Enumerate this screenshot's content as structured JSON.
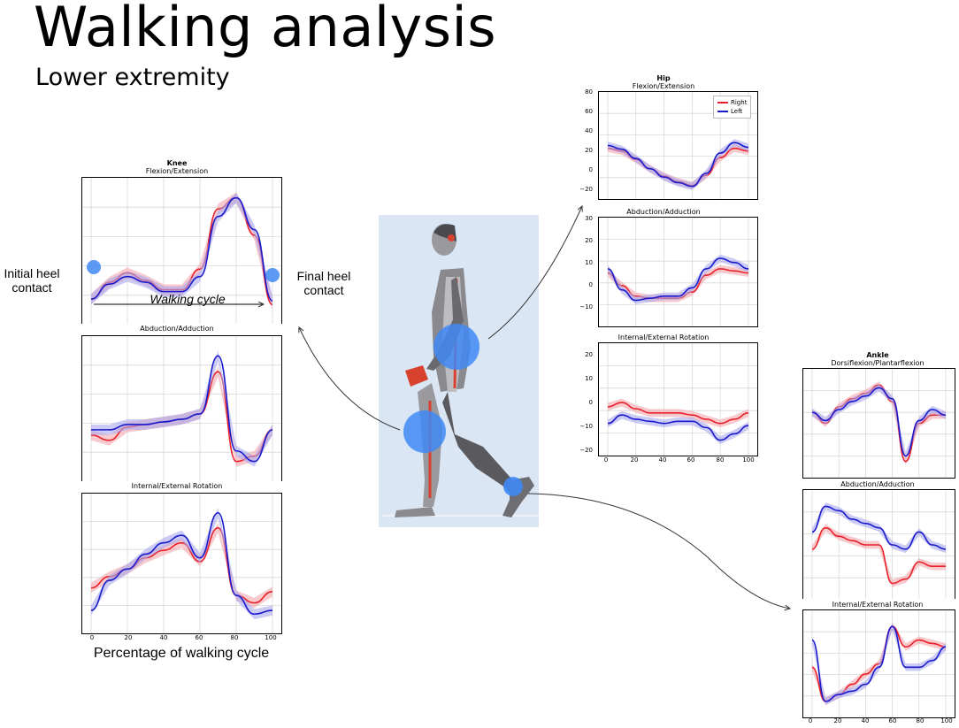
{
  "title": "Walking analysis",
  "subtitle": "Lower extremity",
  "annotations": {
    "initial_heel": "Initial heel\ncontact",
    "final_heel": "Final heel\ncontact",
    "walking_cycle": "Walking cycle",
    "x_axis_caption": "Percentage of walking cycle"
  },
  "legend": {
    "right": "Right",
    "left": "Left"
  },
  "colors": {
    "right": "#e8212b",
    "left": "#1a1acd",
    "right_band": "#f4a6ab",
    "left_band": "#a9a9ee",
    "joint_marker": "#3f88f5",
    "figure_bg": "#dbe6f4",
    "figure_accent": "#d9412f"
  },
  "knee": {
    "joint": "Knee",
    "plots": [
      {
        "title": "Flexion/Extension"
      },
      {
        "title": "Abduction/Adduction"
      },
      {
        "title": "Internal/External Rotation",
        "xticks": [
          "0",
          "20",
          "40",
          "60",
          "80",
          "100"
        ]
      }
    ]
  },
  "hip": {
    "joint": "Hip",
    "plots": [
      {
        "title": "Flexion/Extension",
        "yticks": [
          "80",
          "60",
          "40",
          "20",
          "0",
          "−20"
        ]
      },
      {
        "title": "Abduction/Adduction",
        "yticks": [
          "30",
          "20",
          "10",
          "0",
          "−10"
        ]
      },
      {
        "title": "Internal/External Rotation",
        "yticks": [
          "20",
          "10",
          "0",
          "−10",
          "−20"
        ],
        "xticks": [
          "0",
          "20",
          "40",
          "60",
          "80",
          "100"
        ]
      }
    ]
  },
  "ankle": {
    "joint": "Ankle",
    "plots": [
      {
        "title": "Dorsiflexion/Plantarflexion"
      },
      {
        "title": "Abduction/Adduction"
      },
      {
        "title": "Internal/External Rotation",
        "xticks": [
          "0",
          "20",
          "40",
          "60",
          "80",
          "100"
        ]
      }
    ]
  },
  "chart_data": [
    {
      "type": "line",
      "title": "Flexion/Extension",
      "x": [
        0,
        10,
        20,
        30,
        40,
        50,
        60,
        70,
        80,
        90,
        100
      ],
      "series": [
        {
          "name": "Right",
          "values": [
            8,
            17,
            22,
            18,
            13,
            13,
            24,
            56,
            62,
            42,
            5
          ]
        },
        {
          "name": "Left",
          "values": [
            8,
            16,
            20,
            17,
            12,
            12,
            20,
            52,
            62,
            45,
            7
          ]
        }
      ]
    },
    {
      "type": "line",
      "title": "Abduction/Adduction",
      "x": [
        0,
        10,
        20,
        30,
        40,
        50,
        60,
        70,
        80,
        90,
        100
      ],
      "series": [
        {
          "name": "Right",
          "values": [
            -1,
            -2,
            0.5,
            1,
            1.5,
            2,
            3,
            11,
            -6,
            -5,
            0
          ]
        },
        {
          "name": "Left",
          "values": [
            0,
            0,
            1,
            1,
            1.5,
            2,
            3,
            14,
            -4,
            -6,
            0
          ]
        }
      ]
    },
    {
      "type": "line",
      "title": "Internal/External Rotation",
      "x": [
        0,
        10,
        20,
        30,
        40,
        50,
        60,
        70,
        80,
        90,
        100
      ],
      "series": [
        {
          "name": "Right",
          "values": [
            -2,
            1,
            3,
            6,
            8,
            10,
            5,
            14,
            -4,
            -6,
            -3
          ]
        },
        {
          "name": "Left",
          "values": [
            -8,
            0,
            3,
            7,
            10,
            12,
            6,
            18,
            -4,
            -9,
            -8
          ]
        }
      ]
    },
    {
      "type": "line",
      "title": "Flexion/Extension",
      "x": [
        0,
        10,
        20,
        30,
        40,
        50,
        60,
        70,
        80,
        90,
        100
      ],
      "ylim": [
        -20,
        80
      ],
      "series": [
        {
          "name": "Right",
          "values": [
            27,
            24,
            15,
            5,
            -3,
            -9,
            -13,
            -2,
            17,
            27,
            24
          ]
        },
        {
          "name": "Left",
          "values": [
            30,
            26,
            16,
            5,
            -4,
            -10,
            -14,
            0,
            22,
            33,
            28
          ]
        }
      ]
    },
    {
      "type": "line",
      "title": "Abduction/Adduction",
      "x": [
        0,
        10,
        20,
        30,
        40,
        50,
        60,
        70,
        80,
        90,
        100
      ],
      "ylim": [
        -15,
        30
      ],
      "series": [
        {
          "name": "Right",
          "values": [
            7,
            1,
            -4,
            -5,
            -5,
            -5,
            -2,
            6,
            9,
            8,
            7
          ]
        },
        {
          "name": "Left",
          "values": [
            9,
            -1,
            -6,
            -5,
            -4,
            -4,
            0,
            9,
            14,
            12,
            9
          ]
        }
      ]
    },
    {
      "type": "line",
      "title": "Internal/External Rotation",
      "x": [
        0,
        10,
        20,
        30,
        40,
        50,
        60,
        70,
        80,
        90,
        100
      ],
      "ylim": [
        -22,
        25
      ],
      "series": [
        {
          "name": "Right",
          "values": [
            -2,
            0,
            -3,
            -5,
            -5,
            -5,
            -6,
            -8,
            -10,
            -8,
            -5
          ]
        },
        {
          "name": "Left",
          "values": [
            -10,
            -6,
            -8,
            -9,
            -10,
            -9,
            -9,
            -12,
            -18,
            -15,
            -11
          ]
        }
      ]
    },
    {
      "type": "line",
      "title": "Dorsiflexion/Plantarflexion",
      "x": [
        0,
        10,
        20,
        30,
        40,
        50,
        60,
        70,
        80,
        90,
        100
      ],
      "series": [
        {
          "name": "Right",
          "values": [
            0,
            -4,
            2,
            5,
            7,
            10,
            4,
            -18,
            -4,
            -1,
            -1
          ]
        },
        {
          "name": "Left",
          "values": [
            0,
            -3,
            1,
            4,
            6,
            9,
            5,
            -16,
            -3,
            1,
            -1
          ]
        }
      ]
    },
    {
      "type": "line",
      "title": "Abduction/Adduction",
      "x": [
        0,
        10,
        20,
        30,
        40,
        50,
        60,
        70,
        80,
        90,
        100
      ],
      "series": [
        {
          "name": "Right",
          "values": [
            2,
            7,
            5,
            4,
            3,
            3,
            -6,
            -5,
            -1,
            -2,
            -2
          ]
        },
        {
          "name": "Left",
          "values": [
            6,
            12,
            11,
            9,
            8,
            7,
            3,
            2,
            6,
            3,
            2
          ]
        }
      ]
    },
    {
      "type": "line",
      "title": "Internal/External Rotation",
      "x": [
        0,
        10,
        20,
        30,
        40,
        50,
        60,
        70,
        80,
        90,
        100
      ],
      "series": [
        {
          "name": "Right",
          "values": [
            -2,
            -12,
            -10,
            -7,
            -4,
            -1,
            10,
            4,
            6,
            5,
            4
          ]
        },
        {
          "name": "Left",
          "values": [
            6,
            -12,
            -10,
            -9,
            -7,
            -2,
            10,
            -2,
            -2,
            0,
            4
          ]
        }
      ]
    }
  ]
}
